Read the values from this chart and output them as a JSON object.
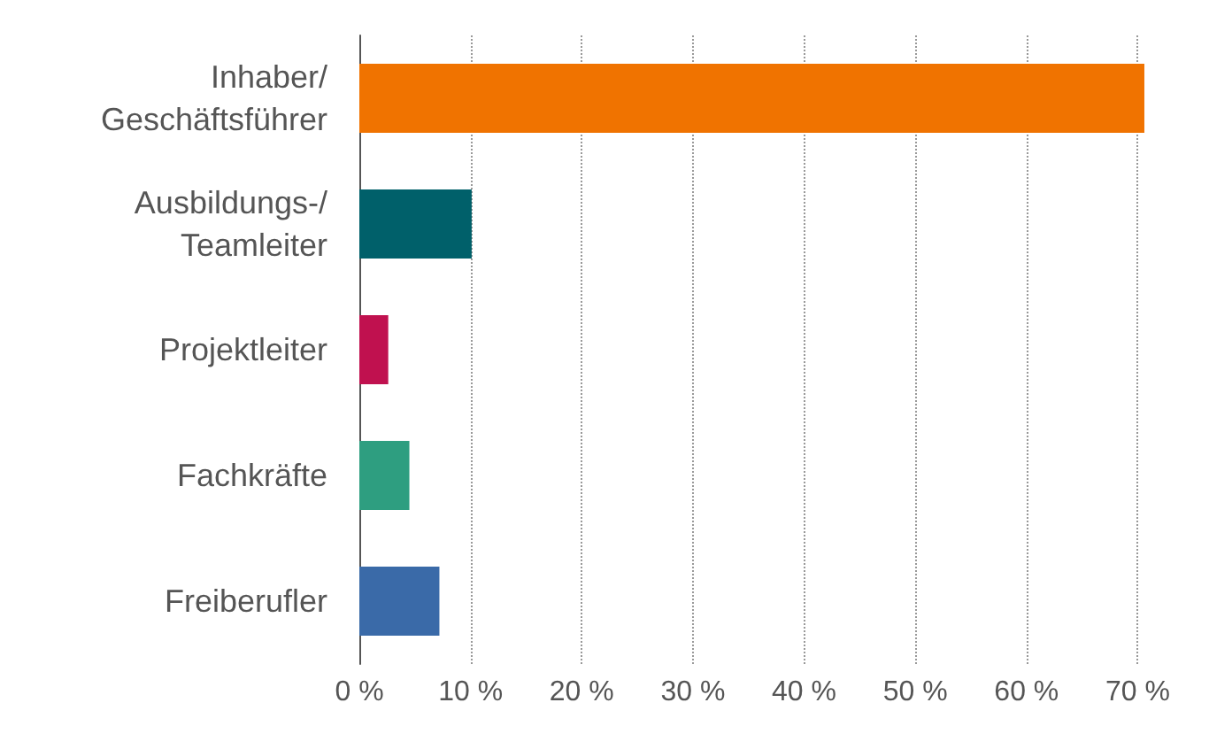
{
  "chart_data": {
    "type": "bar",
    "orientation": "horizontal",
    "categories": [
      "Inhaber/\nGeschäftsführer",
      "Ausbildungs-/\nTeamleiter",
      "Projektleiter",
      "Fachkräfte",
      "Freiberufler"
    ],
    "values": [
      70.6,
      10.1,
      2.6,
      4.5,
      7.2
    ],
    "colors": [
      "#f07300",
      "#00606a",
      "#c0114f",
      "#2e9e80",
      "#3a6aa8"
    ],
    "xlim": [
      0,
      71
    ],
    "xticks": [
      {
        "value": 0,
        "label": "0 %"
      },
      {
        "value": 10,
        "label": "10 %"
      },
      {
        "value": 20,
        "label": "20 %"
      },
      {
        "value": 30,
        "label": "30 %"
      },
      {
        "value": 40,
        "label": "40 %"
      },
      {
        "value": 50,
        "label": "50 %"
      },
      {
        "value": 60,
        "label": "60 %"
      },
      {
        "value": 70,
        "label": "70 %"
      }
    ],
    "grid": "x"
  }
}
